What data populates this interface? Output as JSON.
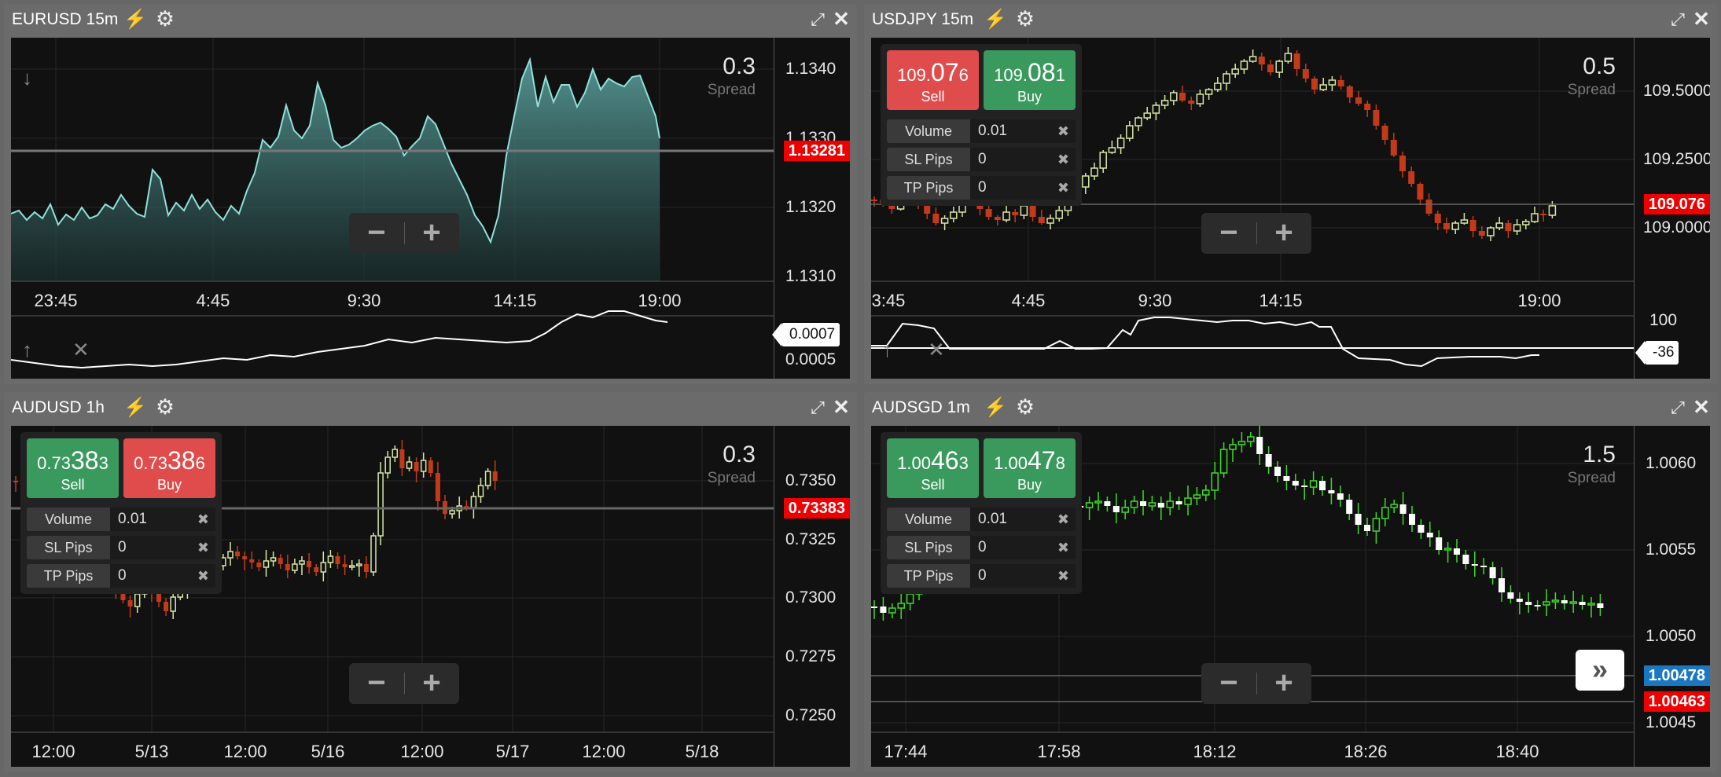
{
  "panels": [
    {
      "title": "EURUSD 15m",
      "spread": "0.3",
      "spread_label": "Spread",
      "yticks": [
        "1.1340",
        "1.1330",
        "1.1320",
        "1.1310"
      ],
      "xticks": [
        "23:45",
        "4:45",
        "9:30",
        "14:15",
        "19:00"
      ],
      "price_tag": "1.13281",
      "sub_value_tag": "0.0007",
      "sub_tick": "0.0005"
    },
    {
      "title": "USDJPY 15m",
      "spread": "0.5",
      "spread_label": "Spread",
      "yticks": [
        "109.5000",
        "109.2500",
        "109.0000"
      ],
      "xticks": [
        "3:45",
        "4:45",
        "9:30",
        "14:15",
        "19:00"
      ],
      "price_tag": "109.076",
      "sub_value_tag": "-36",
      "sub_tick": "100",
      "sell": {
        "pre": "109.",
        "big": "07",
        "post": "6",
        "label": "Sell"
      },
      "buy": {
        "pre": "109.",
        "big": "08",
        "post": "1",
        "label": "Buy"
      }
    },
    {
      "title": "AUDUSD 1h",
      "spread": "0.3",
      "spread_label": "Spread",
      "yticks": [
        "0.7350",
        "0.7325",
        "0.7300",
        "0.7275",
        "0.7250"
      ],
      "xticks": [
        "12:00",
        "5/13",
        "12:00",
        "5/16",
        "12:00",
        "5/17",
        "12:00",
        "5/18"
      ],
      "price_tag": "0.73383",
      "sell": {
        "pre": "0.73",
        "big": "38",
        "post": "3",
        "label": "Sell"
      },
      "buy": {
        "pre": "0.73",
        "big": "38",
        "post": "6",
        "label": "Buy"
      }
    },
    {
      "title": "AUDSGD 1m",
      "spread": "1.5",
      "spread_label": "Spread",
      "yticks": [
        "1.0060",
        "1.0055",
        "1.0050",
        "1.0045"
      ],
      "xticks": [
        "17:44",
        "17:58",
        "18:12",
        "18:26",
        "18:40"
      ],
      "price_tag_blue": "1.00478",
      "price_tag": "1.00463",
      "sell": {
        "pre": "1.00",
        "big": "46",
        "post": "3",
        "label": "Sell"
      },
      "buy": {
        "pre": "1.00",
        "big": "47",
        "post": "8",
        "label": "Buy"
      }
    }
  ],
  "form": {
    "volume_label": "Volume",
    "volume": "0.01",
    "sl_label": "SL Pips",
    "sl": "0",
    "tp_label": "TP Pips",
    "tp": "0"
  },
  "icons": {
    "bolt": "lightning-icon",
    "gear": "gear-icon",
    "expand": "expand-icon",
    "close": "close-icon"
  },
  "colors": {
    "bear": "#c23a1a",
    "bull_pale": "#d6e8a8",
    "bull_green": "#3ddc27",
    "area": "#8fd3cf",
    "price_red": "#ee0000",
    "price_blue": "#1a78c2",
    "sell_red": "#e04b4b",
    "buy_green": "#3a9a5e"
  }
}
